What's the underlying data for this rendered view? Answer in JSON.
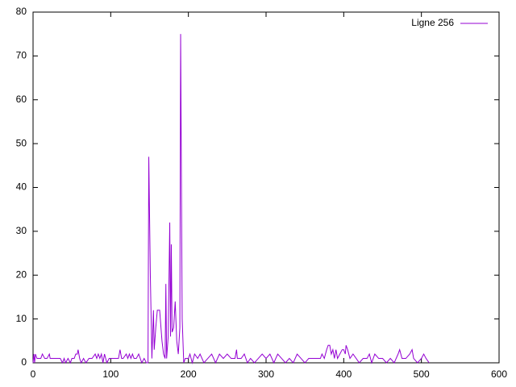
{
  "chart_data": {
    "type": "line",
    "x": [
      0,
      1,
      2,
      3,
      5,
      8,
      10,
      12,
      15,
      18,
      21,
      22,
      25,
      30,
      35,
      38,
      40,
      42,
      45,
      48,
      50,
      53,
      55,
      57,
      58,
      60,
      62,
      65,
      68,
      72,
      76,
      80,
      82,
      84,
      86,
      88,
      90,
      92,
      95,
      98,
      100,
      105,
      110,
      112,
      114,
      116,
      120,
      122,
      124,
      126,
      128,
      130,
      133,
      136,
      140,
      143,
      146,
      148,
      149,
      151,
      153,
      155,
      156,
      158,
      160,
      163,
      166,
      168,
      170,
      171,
      172,
      174,
      176,
      177,
      178,
      179,
      181,
      183,
      185,
      187,
      189,
      190,
      192,
      194,
      196,
      200,
      202,
      205,
      208,
      212,
      215,
      220,
      225,
      230,
      235,
      240,
      245,
      250,
      255,
      260,
      262,
      263,
      268,
      272,
      276,
      280,
      285,
      290,
      295,
      300,
      305,
      310,
      315,
      320,
      325,
      330,
      335,
      340,
      345,
      350,
      355,
      360,
      365,
      370,
      372,
      375,
      378,
      380,
      382,
      384,
      386,
      388,
      390,
      392,
      395,
      398,
      400,
      402,
      403,
      405,
      408,
      412,
      416,
      420,
      425,
      430,
      433,
      436,
      440,
      445,
      450,
      455,
      460,
      465,
      470,
      472,
      475,
      480,
      485,
      488,
      490,
      495,
      500,
      503,
      506,
      510
    ],
    "series": [
      {
        "name": "Ligne 256",
        "color": "#9400d3",
        "values": [
          0,
          2,
          0,
          2,
          1,
          1,
          1,
          2,
          1,
          1,
          2,
          1,
          1,
          1,
          1,
          0,
          1,
          0,
          1,
          0,
          1,
          1,
          2,
          2,
          3,
          1,
          0,
          1,
          0,
          1,
          1,
          2,
          1,
          2,
          1,
          2,
          0,
          2,
          0,
          1,
          1,
          1,
          1,
          3,
          1,
          1,
          2,
          1,
          2,
          1,
          2,
          1,
          1,
          2,
          0,
          1,
          0,
          0,
          47,
          20,
          1,
          12,
          3,
          8,
          12,
          12,
          5,
          2,
          1,
          18,
          1,
          6,
          32,
          6,
          27,
          7,
          8,
          14,
          5,
          2,
          8,
          75,
          10,
          0,
          1,
          1,
          2,
          0,
          2,
          1,
          2,
          0,
          1,
          2,
          0,
          2,
          1,
          2,
          1,
          1,
          3,
          1,
          1,
          2,
          0,
          1,
          0,
          1,
          2,
          1,
          2,
          0,
          2,
          1,
          0,
          1,
          0,
          2,
          1,
          0,
          1,
          1,
          1,
          1,
          2,
          1,
          3,
          4,
          4,
          2,
          3,
          1,
          3,
          1,
          2,
          3,
          3,
          2,
          4,
          3,
          1,
          2,
          1,
          0,
          1,
          1,
          2,
          0,
          2,
          1,
          1,
          0,
          1,
          0,
          2,
          3,
          1,
          1,
          2,
          3,
          1,
          0,
          1,
          2,
          1,
          0
        ]
      }
    ],
    "xlim": [
      0,
      600
    ],
    "xticks": [
      0,
      100,
      200,
      300,
      400,
      500,
      600
    ],
    "ylim": [
      0,
      80
    ],
    "yticks": [
      0,
      10,
      20,
      30,
      40,
      50,
      60,
      70,
      80
    ],
    "grid": false,
    "legend": "top-right"
  }
}
